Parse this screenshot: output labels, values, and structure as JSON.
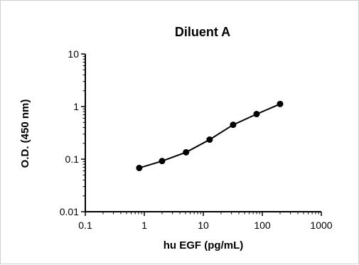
{
  "chart_data": {
    "type": "line",
    "title": "Diluent A",
    "xlabel": "hu EGF (pg/mL)",
    "ylabel": "O.D. (450 nm)",
    "x_scale": "log",
    "y_scale": "log",
    "xlim": [
      0.1,
      1000
    ],
    "ylim": [
      0.01,
      10
    ],
    "x_ticks": [
      "0.1",
      "1",
      "10",
      "100",
      "1000"
    ],
    "y_ticks": [
      "0.01",
      "0.1",
      "1",
      "10"
    ],
    "grid": false,
    "series": [
      {
        "x": [
          0.82,
          2.0,
          5.1,
          12.8,
          32,
          80,
          200
        ],
        "y": [
          0.068,
          0.092,
          0.135,
          0.235,
          0.45,
          0.72,
          1.12
        ]
      }
    ],
    "colors": {
      "line": "#000000",
      "marker": "#000000"
    }
  }
}
